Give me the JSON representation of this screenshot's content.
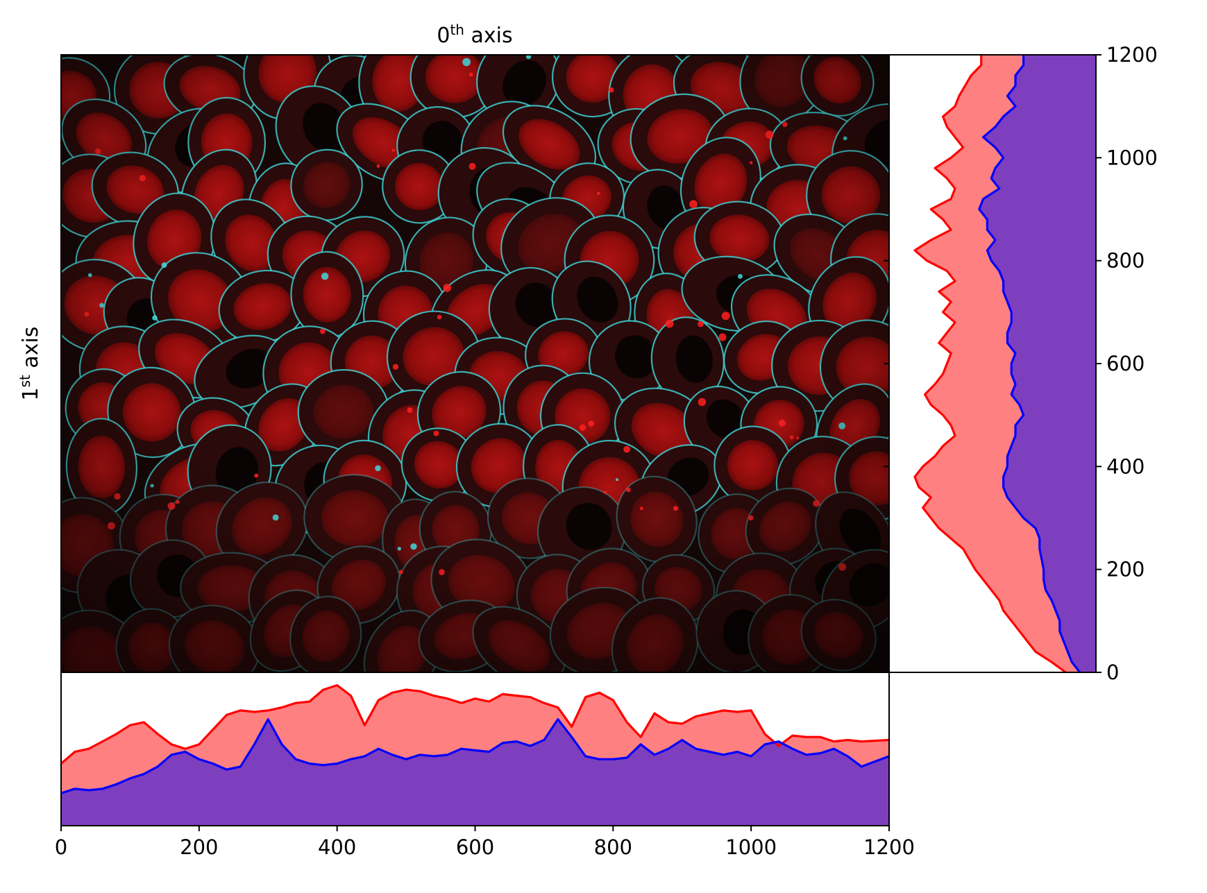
{
  "chart_data": [
    {
      "type": "heatmap",
      "panel": "main-image",
      "title_base": "0",
      "title_sup": "th",
      "title_rest": " axis",
      "ylabel_base": "1",
      "ylabel_sup": "st",
      "ylabel_rest": " axis",
      "xlim": [
        0,
        1200
      ],
      "ylim": [
        0,
        1200
      ],
      "channels": [
        "red",
        "cyan"
      ],
      "colors": {
        "red": "#e01010",
        "cyan": "#40d8dc",
        "background": "#100606"
      }
    },
    {
      "type": "area",
      "panel": "bottom-profile",
      "xlim": [
        0,
        1200
      ],
      "ylim": [
        0,
        100
      ],
      "xticks": [
        0,
        200,
        400,
        600,
        800,
        1000,
        1200
      ],
      "xtick_labels": [
        "0",
        "200",
        "400",
        "600",
        "800",
        "1000",
        "1200"
      ],
      "x": [
        0,
        20,
        40,
        60,
        80,
        100,
        120,
        140,
        160,
        180,
        200,
        220,
        240,
        260,
        280,
        300,
        320,
        340,
        360,
        380,
        400,
        420,
        440,
        460,
        480,
        500,
        520,
        540,
        560,
        580,
        600,
        620,
        640,
        660,
        680,
        700,
        720,
        740,
        760,
        780,
        800,
        820,
        840,
        860,
        880,
        900,
        920,
        940,
        960,
        980,
        1000,
        1020,
        1040,
        1060,
        1080,
        1100,
        1120,
        1140,
        1160,
        1200
      ],
      "series": [
        {
          "name": "red",
          "color": "#ff0000",
          "fill": "#ff8080",
          "values": [
            42,
            50,
            52,
            57,
            62,
            68,
            70,
            62,
            55,
            52,
            55,
            65,
            75,
            78,
            77,
            78,
            80,
            83,
            84,
            92,
            95,
            88,
            68,
            85,
            90,
            92,
            91,
            88,
            86,
            83,
            86,
            84,
            89,
            88,
            87,
            83,
            80,
            67,
            87,
            90,
            85,
            70,
            60,
            76,
            70,
            69,
            74,
            76,
            78,
            77,
            78,
            62,
            54,
            61,
            60,
            60,
            57,
            58,
            57,
            58
          ]
        },
        {
          "name": "blue",
          "color": "#0000ff",
          "fill": "#7e3fbe",
          "values": [
            22,
            25,
            24,
            25,
            28,
            32,
            35,
            40,
            48,
            50,
            45,
            42,
            38,
            40,
            55,
            72,
            55,
            45,
            42,
            41,
            42,
            45,
            47,
            52,
            48,
            45,
            48,
            47,
            48,
            52,
            51,
            50,
            56,
            57,
            54,
            58,
            72,
            60,
            47,
            45,
            45,
            46,
            55,
            48,
            52,
            58,
            52,
            50,
            48,
            50,
            47,
            55,
            57,
            52,
            48,
            49,
            52,
            47,
            40,
            47
          ]
        }
      ]
    },
    {
      "type": "area",
      "panel": "right-profile",
      "orientation": "horizontal",
      "ylim": [
        0,
        1200
      ],
      "xlim": [
        0,
        100
      ],
      "yticks": [
        0,
        200,
        400,
        600,
        800,
        1000,
        1200
      ],
      "ytick_labels": [
        "0",
        "200",
        "400",
        "600",
        "800",
        "1000",
        "1200"
      ],
      "y": [
        0,
        20,
        40,
        60,
        80,
        100,
        120,
        140,
        160,
        180,
        200,
        220,
        240,
        260,
        280,
        300,
        320,
        340,
        360,
        380,
        400,
        420,
        440,
        460,
        480,
        500,
        520,
        540,
        560,
        580,
        600,
        620,
        640,
        660,
        680,
        700,
        720,
        740,
        760,
        780,
        800,
        820,
        840,
        860,
        880,
        900,
        920,
        940,
        960,
        980,
        1000,
        1020,
        1040,
        1060,
        1080,
        1100,
        1120,
        1140,
        1160,
        1180,
        1200
      ],
      "series": [
        {
          "name": "red",
          "color": "#ff0000",
          "fill": "#ff8080",
          "values": [
            15,
            22,
            30,
            34,
            38,
            42,
            46,
            48,
            52,
            56,
            60,
            63,
            66,
            72,
            78,
            82,
            86,
            82,
            88,
            90,
            86,
            80,
            76,
            70,
            72,
            76,
            82,
            85,
            80,
            76,
            74,
            72,
            78,
            74,
            70,
            76,
            72,
            78,
            70,
            74,
            84,
            90,
            82,
            72,
            76,
            82,
            72,
            70,
            74,
            80,
            72,
            66,
            70,
            74,
            76,
            70,
            68,
            65,
            62,
            57,
            57
          ]
        },
        {
          "name": "blue",
          "color": "#0000ff",
          "fill": "#7e3fbe",
          "values": [
            8,
            12,
            14,
            16,
            18,
            18,
            20,
            22,
            25,
            26,
            26,
            27,
            28,
            28,
            30,
            36,
            40,
            44,
            46,
            46,
            44,
            44,
            42,
            40,
            40,
            36,
            38,
            42,
            40,
            42,
            42,
            40,
            44,
            44,
            42,
            42,
            44,
            46,
            46,
            48,
            52,
            54,
            50,
            54,
            54,
            58,
            56,
            48,
            52,
            50,
            46,
            50,
            56,
            50,
            46,
            40,
            44,
            40,
            40,
            36,
            36
          ]
        }
      ]
    }
  ]
}
